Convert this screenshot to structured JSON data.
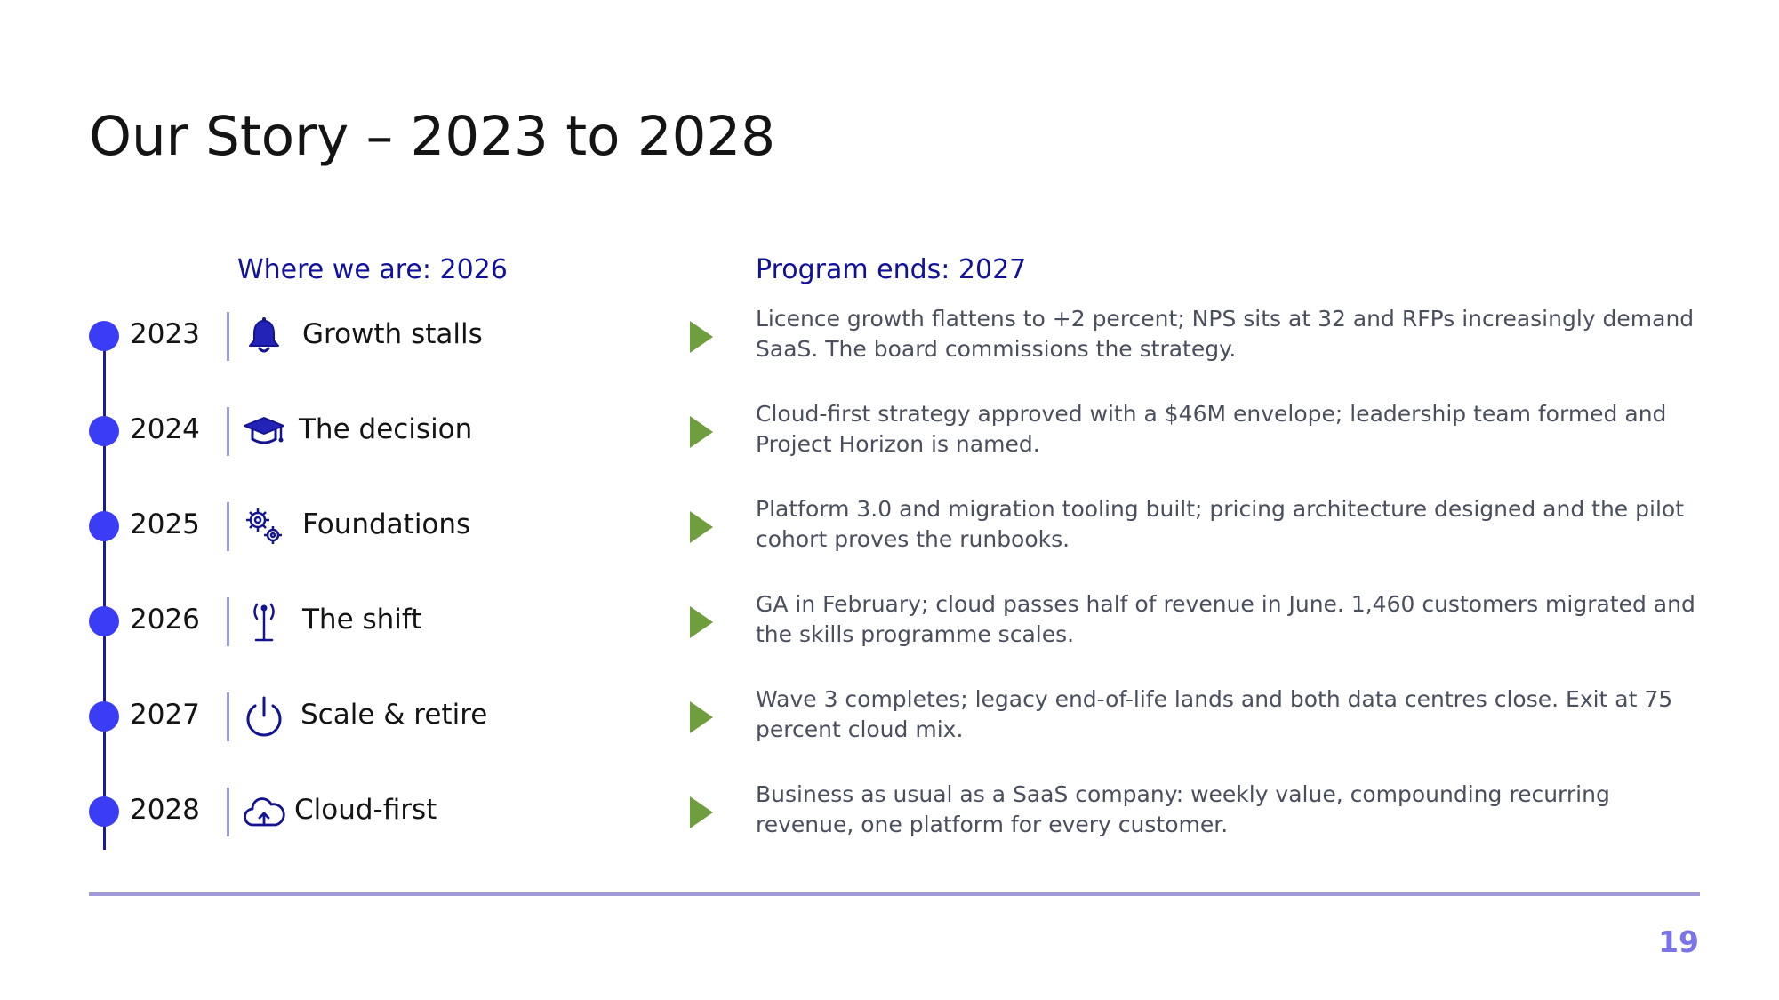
{
  "slide": {
    "title": "Our Story – 2023 to 2028",
    "left_heading": "Where we are: 2026",
    "right_heading": "Program ends: 2027",
    "page_number": "19"
  },
  "colors": {
    "dot": "#3b3df6",
    "line": "#1a1a9a",
    "heading": "#11119a",
    "arrow": "#6f9e3e",
    "rule": "#a09ad8",
    "page_number": "#7a74e8"
  },
  "rows": [
    {
      "year": "2023",
      "icon": "bell-icon",
      "label": "Growth stalls",
      "description": "Licence growth flattens to +2 percent; NPS sits at 32 and RFPs increasingly demand SaaS. The board commissions the strategy."
    },
    {
      "year": "2024",
      "icon": "graduation-cap-icon",
      "label": "The decision",
      "description": "Cloud-first strategy approved with a $46M envelope; leadership team formed and Project Horizon is named."
    },
    {
      "year": "2025",
      "icon": "gears-icon",
      "label": "Foundations",
      "description": "Platform 3.0 and migration tooling built; pricing architecture designed and the pilot cohort proves the runbooks."
    },
    {
      "year": "2026",
      "icon": "antenna-icon",
      "label": "The shift",
      "description": "GA in February; cloud passes half of revenue in June. 1,460 customers migrated and the skills programme scales."
    },
    {
      "year": "2027",
      "icon": "power-icon",
      "label": "Scale & retire",
      "description": "Wave 3 completes; legacy end-of-life lands and both data centres close. Exit at 75 percent cloud mix."
    },
    {
      "year": "2028",
      "icon": "cloud-upload-icon",
      "label": "Cloud-first",
      "description": "Business as usual as a SaaS company: weekly value, compounding recurring revenue, one platform for every customer."
    }
  ]
}
